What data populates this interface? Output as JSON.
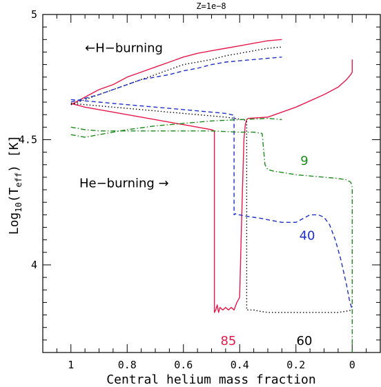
{
  "chart_data": {
    "type": "line",
    "title": "Z=1e−8",
    "xlabel": "Central helium mass fraction",
    "ylabel_main": "Log",
    "ylabel_sub": "10",
    "ylabel_paren_open": "(T",
    "ylabel_eff": "eff",
    "ylabel_tail": ")  [K]",
    "xlim": [
      1.1,
      -0.1
    ],
    "ylim": [
      3.65,
      5.0
    ],
    "x_ticks": [
      1,
      0.8,
      0.6,
      0.4,
      0.2,
      0
    ],
    "x_tick_labels": [
      "1",
      "0.8",
      "0.6",
      "0.4",
      "0.2",
      "0"
    ],
    "y_ticks": [
      4,
      4.5,
      5
    ],
    "y_tick_labels": [
      "4",
      "4.5",
      "5"
    ],
    "annotations": [
      {
        "text": "←H−burning",
        "x": 0.95,
        "y": 4.85
      },
      {
        "text": "He−burning  →",
        "x": 0.97,
        "y": 4.31
      }
    ],
    "series": [
      {
        "label": "85",
        "color": "#e8174a",
        "dash": "",
        "label_pos": [
          0.44,
          3.68
        ],
        "x": [
          1.0,
          0.95,
          0.9,
          0.85,
          0.8,
          0.75,
          0.7,
          0.65,
          0.6,
          0.55,
          0.5,
          0.45,
          0.4,
          0.35,
          0.3,
          0.25,
          null,
          1.0,
          0.95,
          0.9,
          0.85,
          0.8,
          0.75,
          0.7,
          0.65,
          0.6,
          0.55,
          0.5,
          0.49,
          0.49,
          0.485,
          0.48,
          0.475,
          0.47,
          0.46,
          0.45,
          0.44,
          0.43,
          0.42,
          0.41,
          0.4,
          0.395,
          0.39,
          0.385,
          0.38,
          0.375,
          0.37,
          0.3,
          0.2,
          0.1,
          0.05,
          0.02,
          0.005,
          0.0,
          0.0
        ],
        "y": [
          4.64,
          4.67,
          4.7,
          4.72,
          4.75,
          4.77,
          4.79,
          4.81,
          4.83,
          4.845,
          4.855,
          4.865,
          4.875,
          4.885,
          4.895,
          4.9,
          null,
          4.645,
          4.63,
          4.62,
          4.61,
          4.6,
          4.59,
          4.58,
          4.57,
          4.56,
          4.55,
          4.54,
          4.535,
          3.81,
          3.82,
          3.84,
          3.81,
          3.83,
          3.82,
          3.83,
          3.82,
          3.83,
          3.82,
          3.85,
          3.87,
          4.1,
          4.3,
          4.5,
          4.56,
          4.58,
          4.585,
          4.59,
          4.63,
          4.68,
          4.71,
          4.74,
          4.76,
          4.77,
          4.82
        ]
      },
      {
        "label": "60",
        "color": "#000000",
        "dash": "1.5,3",
        "label_pos": [
          0.17,
          3.68
        ],
        "x": [
          1.0,
          0.95,
          0.9,
          0.85,
          0.8,
          0.75,
          0.7,
          0.65,
          0.6,
          0.55,
          0.5,
          0.45,
          0.4,
          0.35,
          0.3,
          0.25,
          null,
          1.0,
          0.95,
          0.9,
          0.85,
          0.8,
          0.75,
          0.7,
          0.65,
          0.6,
          0.55,
          0.5,
          0.45,
          0.42,
          0.4,
          0.39,
          0.38,
          0.375,
          0.375,
          0.37,
          0.35,
          0.33,
          0.3,
          0.25,
          0.2,
          0.15,
          0.1,
          0.05,
          0.02,
          0.0
        ],
        "y": [
          4.64,
          4.66,
          4.68,
          4.7,
          4.72,
          4.74,
          4.76,
          4.78,
          4.8,
          4.81,
          4.82,
          4.835,
          4.845,
          4.855,
          4.865,
          4.87,
          null,
          4.645,
          4.64,
          4.635,
          4.63,
          4.625,
          4.62,
          4.615,
          4.61,
          4.605,
          4.6,
          4.595,
          4.59,
          4.585,
          4.582,
          4.58,
          4.578,
          4.575,
          3.82,
          3.82,
          3.82,
          3.815,
          3.81,
          3.81,
          3.81,
          3.81,
          3.81,
          3.81,
          3.815,
          3.82
        ]
      },
      {
        "label": "40",
        "color": "#1c2fc8",
        "dash": "6,4",
        "label_pos": [
          0.16,
          4.1
        ],
        "x": [
          1.0,
          0.95,
          0.9,
          0.85,
          0.8,
          0.75,
          0.7,
          0.65,
          0.6,
          0.55,
          0.5,
          0.45,
          0.4,
          0.35,
          0.3,
          0.25,
          null,
          1.0,
          0.95,
          0.9,
          0.85,
          0.8,
          0.75,
          0.7,
          0.65,
          0.6,
          0.55,
          0.5,
          0.45,
          0.43,
          0.42,
          0.42,
          0.415,
          0.41,
          0.4,
          0.38,
          0.35,
          0.32,
          0.3,
          0.25,
          0.2,
          0.15,
          0.12,
          0.1,
          0.08,
          0.06,
          0.04,
          0.02,
          0.01,
          0.0
        ],
        "y": [
          4.65,
          4.665,
          4.68,
          4.7,
          4.72,
          4.74,
          4.75,
          4.76,
          4.775,
          4.785,
          4.8,
          4.81,
          4.815,
          4.82,
          4.825,
          4.83,
          null,
          4.66,
          4.655,
          4.65,
          4.645,
          4.64,
          4.635,
          4.63,
          4.625,
          4.62,
          4.615,
          4.61,
          4.605,
          4.6,
          4.598,
          4.2,
          4.205,
          4.2,
          4.2,
          4.195,
          4.19,
          4.185,
          4.18,
          4.17,
          4.17,
          4.2,
          4.2,
          4.19,
          4.16,
          4.1,
          4.02,
          3.92,
          3.86,
          3.82
        ]
      },
      {
        "label": "9",
        "color": "#1a8a1a",
        "dash": "7,3,1.5,3",
        "label_pos": [
          0.17,
          4.4
        ],
        "x": [
          1.0,
          0.95,
          0.9,
          0.85,
          0.8,
          0.7,
          0.6,
          0.5,
          0.4,
          0.35,
          0.32,
          0.31,
          0.3,
          0.28,
          0.2,
          0.1,
          0.05,
          0.02,
          0.005,
          0.0,
          0.0,
          null,
          1.0,
          0.95,
          0.9,
          0.85,
          0.8,
          0.7,
          0.6,
          0.5,
          0.4,
          0.3,
          0.25
        ],
        "y": [
          4.55,
          4.54,
          4.535,
          4.535,
          4.535,
          4.535,
          4.535,
          4.535,
          4.53,
          4.53,
          4.525,
          4.4,
          4.38,
          4.375,
          4.36,
          4.35,
          4.345,
          4.34,
          4.33,
          4.31,
          3.65,
          null,
          4.52,
          4.51,
          4.52,
          4.53,
          4.54,
          4.555,
          4.565,
          4.575,
          4.58,
          4.585,
          4.58
        ]
      }
    ]
  }
}
